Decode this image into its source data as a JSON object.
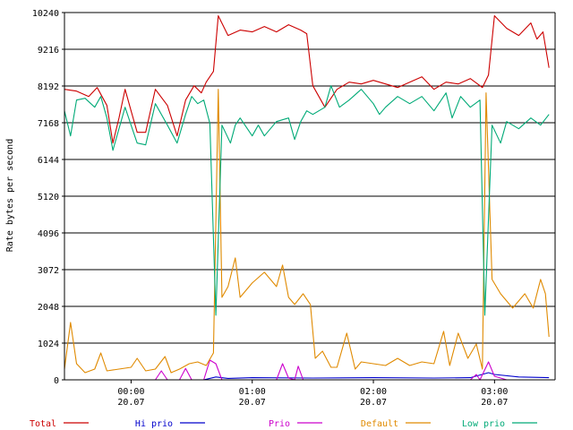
{
  "chart_data": {
    "type": "line",
    "title": "",
    "xlabel": "",
    "ylabel": "Rate bytes per second",
    "ylim": [
      0,
      10240
    ],
    "yticks": [
      0,
      1024,
      2048,
      3072,
      4096,
      5120,
      6144,
      7168,
      8192,
      9216,
      10240
    ],
    "xlim": [
      -0.55,
      3.5
    ],
    "xticks": [
      {
        "x": 0.0,
        "time": "00:00",
        "date": "20.07"
      },
      {
        "x": 1.0,
        "time": "01:00",
        "date": "20.07"
      },
      {
        "x": 2.0,
        "time": "02:00",
        "date": "20.07"
      },
      {
        "x": 3.0,
        "time": "03:00",
        "date": "20.07"
      }
    ],
    "grid": true,
    "legend_position": "bottom",
    "series": [
      {
        "name": "Total",
        "color": "#cc0000",
        "points": [
          [
            -0.55,
            8100
          ],
          [
            -0.45,
            8050
          ],
          [
            -0.35,
            7900
          ],
          [
            -0.28,
            8150
          ],
          [
            -0.2,
            7650
          ],
          [
            -0.15,
            6600
          ],
          [
            -0.1,
            7300
          ],
          [
            -0.05,
            8100
          ],
          [
            0.0,
            7500
          ],
          [
            0.05,
            6900
          ],
          [
            0.12,
            6900
          ],
          [
            0.2,
            8100
          ],
          [
            0.3,
            7650
          ],
          [
            0.38,
            6800
          ],
          [
            0.45,
            7800
          ],
          [
            0.52,
            8200
          ],
          [
            0.58,
            8000
          ],
          [
            0.62,
            8300
          ],
          [
            0.68,
            8600
          ],
          [
            0.72,
            10150
          ],
          [
            0.8,
            9600
          ],
          [
            0.9,
            9750
          ],
          [
            1.0,
            9700
          ],
          [
            1.1,
            9850
          ],
          [
            1.2,
            9700
          ],
          [
            1.3,
            9900
          ],
          [
            1.4,
            9750
          ],
          [
            1.45,
            9650
          ],
          [
            1.5,
            8200
          ],
          [
            1.6,
            7600
          ],
          [
            1.7,
            8100
          ],
          [
            1.8,
            8300
          ],
          [
            1.9,
            8250
          ],
          [
            2.0,
            8350
          ],
          [
            2.1,
            8250
          ],
          [
            2.2,
            8150
          ],
          [
            2.3,
            8300
          ],
          [
            2.4,
            8450
          ],
          [
            2.5,
            8100
          ],
          [
            2.6,
            8300
          ],
          [
            2.7,
            8250
          ],
          [
            2.8,
            8400
          ],
          [
            2.9,
            8150
          ],
          [
            2.95,
            8500
          ],
          [
            3.0,
            10150
          ],
          [
            3.1,
            9800
          ],
          [
            3.2,
            9600
          ],
          [
            3.3,
            9950
          ],
          [
            3.35,
            9500
          ],
          [
            3.4,
            9700
          ],
          [
            3.45,
            8700
          ]
        ]
      },
      {
        "name": "Hi prio",
        "color": "#0000cc",
        "points": [
          [
            -0.55,
            0
          ],
          [
            0.6,
            0
          ],
          [
            0.7,
            80
          ],
          [
            0.8,
            40
          ],
          [
            1.0,
            60
          ],
          [
            1.5,
            50
          ],
          [
            2.0,
            60
          ],
          [
            2.5,
            50
          ],
          [
            2.8,
            60
          ],
          [
            2.95,
            200
          ],
          [
            3.0,
            150
          ],
          [
            3.2,
            80
          ],
          [
            3.45,
            60
          ]
        ]
      },
      {
        "name": "Prio",
        "color": "#cc00cc",
        "points": [
          [
            -0.55,
            0
          ],
          [
            0.2,
            0
          ],
          [
            0.25,
            250
          ],
          [
            0.3,
            0
          ],
          [
            0.4,
            0
          ],
          [
            0.45,
            320
          ],
          [
            0.5,
            0
          ],
          [
            0.6,
            0
          ],
          [
            0.65,
            550
          ],
          [
            0.7,
            450
          ],
          [
            0.75,
            0
          ],
          [
            1.2,
            0
          ],
          [
            1.25,
            450
          ],
          [
            1.3,
            50
          ],
          [
            1.35,
            0
          ],
          [
            1.38,
            380
          ],
          [
            1.42,
            0
          ],
          [
            2.8,
            0
          ],
          [
            2.85,
            150
          ],
          [
            2.88,
            0
          ],
          [
            2.95,
            500
          ],
          [
            3.0,
            100
          ],
          [
            3.1,
            0
          ],
          [
            3.45,
            0
          ]
        ]
      },
      {
        "name": "Default",
        "color": "#e08a00",
        "points": [
          [
            -0.55,
            300
          ],
          [
            -0.5,
            1600
          ],
          [
            -0.45,
            450
          ],
          [
            -0.38,
            200
          ],
          [
            -0.3,
            300
          ],
          [
            -0.25,
            750
          ],
          [
            -0.2,
            250
          ],
          [
            -0.1,
            300
          ],
          [
            0.0,
            350
          ],
          [
            0.05,
            600
          ],
          [
            0.12,
            250
          ],
          [
            0.2,
            300
          ],
          [
            0.28,
            650
          ],
          [
            0.33,
            200
          ],
          [
            0.4,
            300
          ],
          [
            0.48,
            450
          ],
          [
            0.55,
            500
          ],
          [
            0.62,
            400
          ],
          [
            0.68,
            750
          ],
          [
            0.72,
            8100
          ],
          [
            0.75,
            2300
          ],
          [
            0.8,
            2600
          ],
          [
            0.86,
            3400
          ],
          [
            0.9,
            2300
          ],
          [
            1.0,
            2700
          ],
          [
            1.1,
            3000
          ],
          [
            1.2,
            2600
          ],
          [
            1.25,
            3200
          ],
          [
            1.3,
            2300
          ],
          [
            1.35,
            2100
          ],
          [
            1.42,
            2400
          ],
          [
            1.48,
            2100
          ],
          [
            1.52,
            600
          ],
          [
            1.58,
            800
          ],
          [
            1.65,
            350
          ],
          [
            1.7,
            350
          ],
          [
            1.78,
            1300
          ],
          [
            1.85,
            300
          ],
          [
            1.9,
            500
          ],
          [
            2.0,
            450
          ],
          [
            2.1,
            400
          ],
          [
            2.2,
            600
          ],
          [
            2.3,
            400
          ],
          [
            2.4,
            500
          ],
          [
            2.5,
            450
          ],
          [
            2.58,
            1350
          ],
          [
            2.63,
            400
          ],
          [
            2.7,
            1300
          ],
          [
            2.78,
            600
          ],
          [
            2.85,
            1000
          ],
          [
            2.9,
            300
          ],
          [
            2.93,
            8000
          ],
          [
            2.98,
            2800
          ],
          [
            3.05,
            2400
          ],
          [
            3.15,
            2000
          ],
          [
            3.25,
            2400
          ],
          [
            3.32,
            2000
          ],
          [
            3.38,
            2800
          ],
          [
            3.42,
            2400
          ],
          [
            3.45,
            1200
          ]
        ]
      },
      {
        "name": "Low prio",
        "color": "#00aa77",
        "points": [
          [
            -0.55,
            7500
          ],
          [
            -0.5,
            6800
          ],
          [
            -0.45,
            7800
          ],
          [
            -0.38,
            7850
          ],
          [
            -0.3,
            7600
          ],
          [
            -0.25,
            7900
          ],
          [
            -0.2,
            7300
          ],
          [
            -0.15,
            6400
          ],
          [
            -0.1,
            7000
          ],
          [
            -0.05,
            7600
          ],
          [
            0.0,
            7100
          ],
          [
            0.05,
            6600
          ],
          [
            0.12,
            6550
          ],
          [
            0.2,
            7700
          ],
          [
            0.3,
            7100
          ],
          [
            0.38,
            6600
          ],
          [
            0.45,
            7400
          ],
          [
            0.5,
            7900
          ],
          [
            0.55,
            7700
          ],
          [
            0.6,
            7800
          ],
          [
            0.65,
            7150
          ],
          [
            0.7,
            1800
          ],
          [
            0.75,
            7100
          ],
          [
            0.82,
            6600
          ],
          [
            0.86,
            7100
          ],
          [
            0.9,
            7300
          ],
          [
            1.0,
            6800
          ],
          [
            1.05,
            7100
          ],
          [
            1.1,
            6800
          ],
          [
            1.2,
            7200
          ],
          [
            1.3,
            7300
          ],
          [
            1.35,
            6700
          ],
          [
            1.4,
            7200
          ],
          [
            1.45,
            7500
          ],
          [
            1.5,
            7400
          ],
          [
            1.6,
            7600
          ],
          [
            1.65,
            8200
          ],
          [
            1.72,
            7600
          ],
          [
            1.8,
            7800
          ],
          [
            1.9,
            8100
          ],
          [
            2.0,
            7700
          ],
          [
            2.05,
            7400
          ],
          [
            2.1,
            7600
          ],
          [
            2.2,
            7900
          ],
          [
            2.3,
            7700
          ],
          [
            2.4,
            7900
          ],
          [
            2.5,
            7500
          ],
          [
            2.6,
            8000
          ],
          [
            2.65,
            7300
          ],
          [
            2.72,
            7900
          ],
          [
            2.8,
            7600
          ],
          [
            2.88,
            7800
          ],
          [
            2.92,
            1800
          ],
          [
            2.98,
            7100
          ],
          [
            3.05,
            6600
          ],
          [
            3.1,
            7200
          ],
          [
            3.2,
            7000
          ],
          [
            3.3,
            7300
          ],
          [
            3.38,
            7100
          ],
          [
            3.45,
            7400
          ]
        ]
      }
    ]
  }
}
